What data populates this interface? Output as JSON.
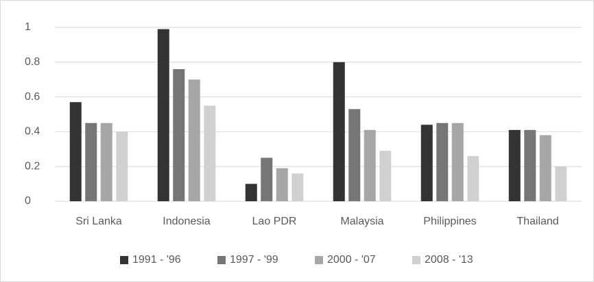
{
  "chart_data": {
    "type": "bar",
    "categories": [
      "Sri Lanka",
      "Indonesia",
      "Lao PDR",
      "Malaysia",
      "Philippines",
      "Thailand"
    ],
    "series": [
      {
        "name": "1991 - '96",
        "color": "#333333",
        "values": [
          0.57,
          0.99,
          0.1,
          0.8,
          0.44,
          0.41
        ]
      },
      {
        "name": "1997 - '99",
        "color": "#767676",
        "values": [
          0.45,
          0.76,
          0.25,
          0.53,
          0.45,
          0.41
        ]
      },
      {
        "name": "2000 - '07",
        "color": "#a6a6a6",
        "values": [
          0.45,
          0.7,
          0.19,
          0.41,
          0.45,
          0.38
        ]
      },
      {
        "name": "2008 - '13",
        "color": "#d0d0d0",
        "values": [
          0.4,
          0.55,
          0.16,
          0.29,
          0.26,
          0.2
        ]
      }
    ],
    "ylim": [
      0,
      1
    ],
    "yticks": [
      0,
      0.2,
      0.4,
      0.6,
      0.8,
      1
    ],
    "grid": true,
    "legend": "bottom"
  }
}
